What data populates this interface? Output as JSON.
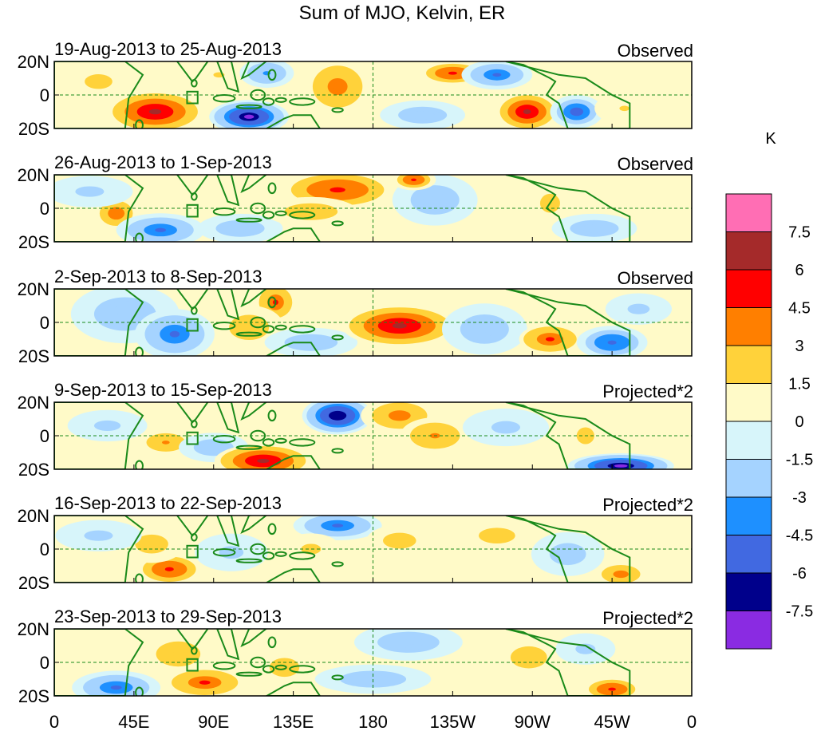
{
  "chart_data": {
    "type": "heatmap",
    "title": "Sum of MJO, Kelvin, ER",
    "units": "K",
    "x_ticks": [
      "0",
      "45E",
      "90E",
      "135E",
      "180",
      "135W",
      "90W",
      "45W",
      "0"
    ],
    "x_tick_values": [
      0,
      45,
      90,
      135,
      180,
      225,
      270,
      315,
      360
    ],
    "y_ticks": [
      "20N",
      "0",
      "20S"
    ],
    "y_tick_values": [
      20,
      0,
      -20
    ],
    "xlim": [
      0,
      360
    ],
    "ylim": [
      -20,
      20
    ],
    "colorbar": {
      "labels": [
        "7.5",
        "6",
        "4.5",
        "3",
        "1.5",
        "0",
        "-1.5",
        "-3",
        "-4.5",
        "-6",
        "-7.5"
      ],
      "levels": [
        7.5,
        6,
        4.5,
        3,
        1.5,
        0,
        -1.5,
        -3,
        -4.5,
        -6,
        -7.5
      ],
      "colors": [
        "#ff6eb4",
        "#a52a2a",
        "#ff0000",
        "#ff7f00",
        "#ffd23a",
        "#fffac8",
        "#d7f5fa",
        "#a5d3ff",
        "#1e90ff",
        "#4169e1",
        "#00008b",
        "#8a2be2"
      ]
    },
    "panels": [
      {
        "period": "19-Aug-2013 to 25-Aug-2013",
        "status": "Observed",
        "anomalies": [
          {
            "lon": 57,
            "lat": -10,
            "value": 6.0,
            "width": 22,
            "height": 10
          },
          {
            "lon": 25,
            "lat": 8,
            "value": 1.8,
            "width": 25,
            "height": 14
          },
          {
            "lon": 93,
            "lat": 12,
            "value": 1.6,
            "width": 20,
            "height": 10
          },
          {
            "lon": 110,
            "lat": -13,
            "value": -7.8,
            "width": 18,
            "height": 8
          },
          {
            "lon": 120,
            "lat": 13,
            "value": -3.2,
            "width": 14,
            "height": 8
          },
          {
            "lon": 160,
            "lat": 5,
            "value": 3.5,
            "width": 18,
            "height": 16
          },
          {
            "lon": 208,
            "lat": -12,
            "value": -3.0,
            "width": 22,
            "height": 8
          },
          {
            "lon": 225,
            "lat": 13,
            "value": 4.8,
            "width": 16,
            "height": 6
          },
          {
            "lon": 250,
            "lat": 12,
            "value": -4.8,
            "width": 16,
            "height": 7
          },
          {
            "lon": 267,
            "lat": -10,
            "value": 6.2,
            "width": 14,
            "height": 9
          },
          {
            "lon": 295,
            "lat": -10,
            "value": -5.5,
            "width": 12,
            "height": 8
          },
          {
            "lon": 322,
            "lat": -8,
            "value": 1.7,
            "width": 18,
            "height": 10
          }
        ]
      },
      {
        "period": "26-Aug-2013 to 1-Sep-2013",
        "status": "Observed",
        "anomalies": [
          {
            "lon": 35,
            "lat": -3,
            "value": 4.0,
            "width": 10,
            "height": 8
          },
          {
            "lon": 60,
            "lat": -13,
            "value": -4.8,
            "width": 20,
            "height": 8
          },
          {
            "lon": 20,
            "lat": 10,
            "value": -1.8,
            "width": 26,
            "height": 10
          },
          {
            "lon": 105,
            "lat": -12,
            "value": -2.5,
            "width": 22,
            "height": 8
          },
          {
            "lon": 160,
            "lat": 11,
            "value": 4.8,
            "width": 28,
            "height": 10
          },
          {
            "lon": 145,
            "lat": -2,
            "value": 2.5,
            "width": 24,
            "height": 8
          },
          {
            "lon": 215,
            "lat": 5,
            "value": -2.5,
            "width": 22,
            "height": 14
          },
          {
            "lon": 203,
            "lat": 17,
            "value": 5.0,
            "width": 10,
            "height": 5
          },
          {
            "lon": 280,
            "lat": 3,
            "value": 1.8,
            "width": 18,
            "height": 18
          },
          {
            "lon": 305,
            "lat": -12,
            "value": -3.0,
            "width": 22,
            "height": 8
          }
        ]
      },
      {
        "period": "2-Sep-2013 to 8-Sep-2013",
        "status": "Observed",
        "anomalies": [
          {
            "lon": 40,
            "lat": 5,
            "value": -2.5,
            "width": 28,
            "height": 16
          },
          {
            "lon": 68,
            "lat": -7,
            "value": -4.8,
            "width": 18,
            "height": 12
          },
          {
            "lon": 125,
            "lat": 12,
            "value": 4.5,
            "width": 10,
            "height": 10
          },
          {
            "lon": 110,
            "lat": -3,
            "value": 2.5,
            "width": 18,
            "height": 12
          },
          {
            "lon": 145,
            "lat": -12,
            "value": -3.0,
            "width": 24,
            "height": 8
          },
          {
            "lon": 195,
            "lat": -2,
            "value": 6.0,
            "width": 26,
            "height": 10
          },
          {
            "lon": 243,
            "lat": -4,
            "value": -2.8,
            "width": 22,
            "height": 14
          },
          {
            "lon": 280,
            "lat": -10,
            "value": 4.5,
            "width": 16,
            "height": 8
          },
          {
            "lon": 315,
            "lat": -12,
            "value": -5.0,
            "width": 16,
            "height": 8
          },
          {
            "lon": 330,
            "lat": 8,
            "value": -2.0,
            "width": 20,
            "height": 10
          }
        ]
      },
      {
        "period": "9-Sep-2013 to 15-Sep-2013",
        "status": "Projected*2",
        "anomalies": [
          {
            "lon": 63,
            "lat": -4,
            "value": 3.2,
            "width": 14,
            "height": 7
          },
          {
            "lon": 30,
            "lat": 6,
            "value": -2.0,
            "width": 24,
            "height": 10
          },
          {
            "lon": 90,
            "lat": -7,
            "value": -2.6,
            "width": 18,
            "height": 8
          },
          {
            "lon": 118,
            "lat": -15,
            "value": 6.5,
            "width": 22,
            "height": 8
          },
          {
            "lon": 160,
            "lat": 12,
            "value": -7.5,
            "width": 16,
            "height": 9
          },
          {
            "lon": 195,
            "lat": 12,
            "value": 3.8,
            "width": 20,
            "height": 10
          },
          {
            "lon": 215,
            "lat": 0,
            "value": 3.0,
            "width": 18,
            "height": 10
          },
          {
            "lon": 255,
            "lat": 5,
            "value": -1.8,
            "width": 26,
            "height": 12
          },
          {
            "lon": 300,
            "lat": 0,
            "value": 1.8,
            "width": 16,
            "height": 16
          },
          {
            "lon": 320,
            "lat": -18,
            "value": -8.0,
            "width": 24,
            "height": 6
          }
        ]
      },
      {
        "period": "16-Sep-2013 to 22-Sep-2013",
        "status": "Projected*2",
        "anomalies": [
          {
            "lon": 65,
            "lat": -12,
            "value": 5.0,
            "width": 16,
            "height": 8
          },
          {
            "lon": 55,
            "lat": 3,
            "value": 2.0,
            "width": 20,
            "height": 12
          },
          {
            "lon": 25,
            "lat": 8,
            "value": -1.8,
            "width": 26,
            "height": 10
          },
          {
            "lon": 100,
            "lat": -2,
            "value": -2.0,
            "width": 22,
            "height": 12
          },
          {
            "lon": 160,
            "lat": 14,
            "value": -4.8,
            "width": 20,
            "height": 7
          },
          {
            "lon": 145,
            "lat": 0,
            "value": 1.8,
            "width": 18,
            "height": 10
          },
          {
            "lon": 195,
            "lat": 5,
            "value": 2.2,
            "width": 20,
            "height": 10
          },
          {
            "lon": 250,
            "lat": 8,
            "value": 2.0,
            "width": 22,
            "height": 10
          },
          {
            "lon": 290,
            "lat": -3,
            "value": -2.2,
            "width": 22,
            "height": 14
          },
          {
            "lon": 320,
            "lat": -15,
            "value": 3.8,
            "width": 14,
            "height": 7
          }
        ]
      },
      {
        "period": "23-Sep-2013 to 29-Sep-2013",
        "status": "Projected*2",
        "anomalies": [
          {
            "lon": 70,
            "lat": 5,
            "value": 2.8,
            "width": 20,
            "height": 12
          },
          {
            "lon": 85,
            "lat": -12,
            "value": 4.5,
            "width": 20,
            "height": 8
          },
          {
            "lon": 35,
            "lat": -15,
            "value": -4.8,
            "width": 20,
            "height": 8
          },
          {
            "lon": 130,
            "lat": -3,
            "value": 2.0,
            "width": 18,
            "height": 12
          },
          {
            "lon": 180,
            "lat": -10,
            "value": -2.5,
            "width": 30,
            "height": 8
          },
          {
            "lon": 200,
            "lat": 12,
            "value": -2.8,
            "width": 28,
            "height": 10
          },
          {
            "lon": 268,
            "lat": 3,
            "value": 2.0,
            "width": 22,
            "height": 14
          },
          {
            "lon": 315,
            "lat": -16,
            "value": 5.0,
            "width": 14,
            "height": 6
          },
          {
            "lon": 300,
            "lat": 8,
            "value": -1.8,
            "width": 18,
            "height": 10
          }
        ]
      }
    ]
  }
}
